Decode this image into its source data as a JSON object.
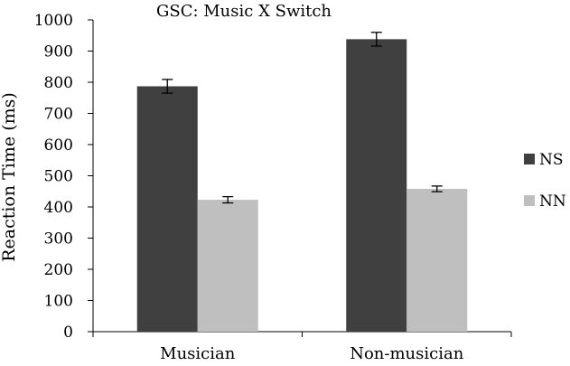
{
  "chart_data": {
    "type": "bar",
    "title": "GSC: Music X Switch",
    "xlabel": "",
    "ylabel": "Reaction Time (ms)",
    "ylim": [
      0,
      1000
    ],
    "yticks": [
      0,
      100,
      200,
      300,
      400,
      500,
      600,
      700,
      800,
      900,
      1000
    ],
    "categories": [
      "Musician",
      "Non-musician"
    ],
    "series": [
      {
        "name": "NS",
        "color": "#404040",
        "values": [
          787,
          938
        ],
        "errors": [
          22,
          22
        ]
      },
      {
        "name": "NN",
        "color": "#bfbfbf",
        "values": [
          423,
          458
        ],
        "errors": [
          10,
          9
        ]
      }
    ],
    "legend": "right",
    "error_bars": true,
    "grid": false
  }
}
